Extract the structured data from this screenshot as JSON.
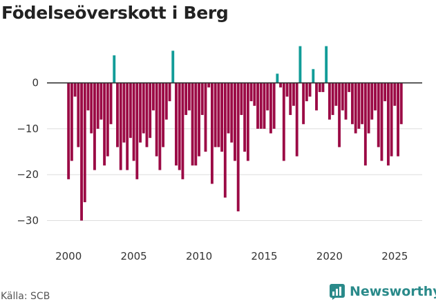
{
  "title": "Födelseöverskott i Berg",
  "source": "Källa: SCB",
  "brand": "Newsworthy",
  "colors": {
    "positive": "#119c98",
    "negative": "#9b0a45",
    "zero_line": "#333333",
    "grid": "#dddddd",
    "brand": "#2a8a8a"
  },
  "chart_data": {
    "type": "bar",
    "title": "Födelseöverskott i Berg",
    "xlabel": "",
    "ylabel": "",
    "ylim": [
      -34,
      9
    ],
    "xlim": [
      1998.35,
      2027.1
    ],
    "yticks": [
      0,
      -10,
      -20,
      -30
    ],
    "xticks": [
      2000,
      2005,
      2010,
      2015,
      2020,
      2025
    ],
    "grid": true,
    "start": 2000.0,
    "step": 0.25,
    "values": [
      -21,
      -17,
      -3,
      -14,
      -30,
      -26,
      -6,
      -11,
      -19,
      -10,
      -8,
      -18,
      -16,
      -9,
      6,
      -14,
      -19,
      -13,
      -19,
      -12,
      -17,
      -21,
      -13,
      -11,
      -14,
      -12,
      -6,
      -16,
      -19,
      -14,
      -8,
      -4,
      7,
      -18,
      -19,
      -21,
      -7,
      -6,
      -18,
      -18,
      -16,
      -7,
      -15,
      -1,
      -22,
      -14,
      -14,
      -15,
      -25,
      -11,
      -13,
      -17,
      -28,
      -7,
      -15,
      -17,
      -4,
      -5,
      -10,
      -10,
      -10,
      -6,
      -11,
      -10,
      2,
      -1,
      -17,
      -3,
      -7,
      -5,
      -16,
      8,
      -9,
      -4,
      -3,
      3,
      -6,
      -2,
      -2,
      8,
      -8,
      -7,
      -5,
      -14,
      -6,
      -8,
      -2,
      -9,
      -11,
      -10,
      -9,
      -18,
      -11,
      -8,
      -6,
      -14,
      -17,
      -4,
      -18,
      -16,
      -5,
      -16,
      -9
    ]
  }
}
